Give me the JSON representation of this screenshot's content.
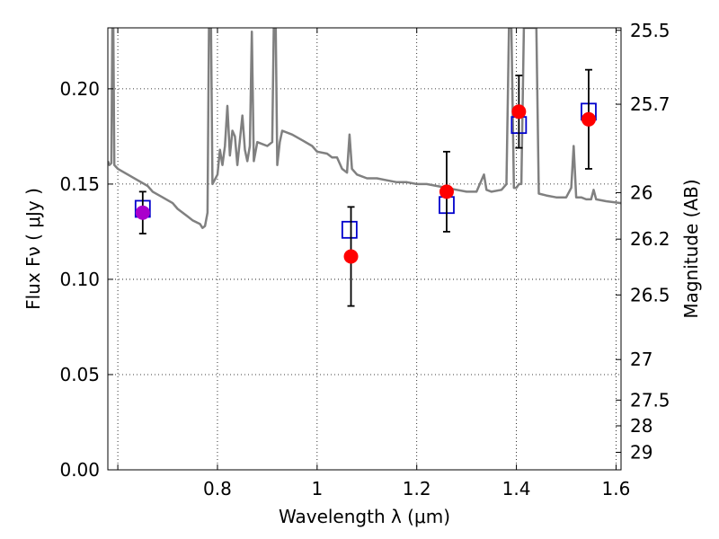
{
  "chart_data": {
    "type": "scatter",
    "title": "",
    "xlabel": "Wavelength  λ (μm)",
    "ylabel": "Flux  Fν  ( μJy )",
    "y2label": "Magnitude (AB)",
    "xlim": [
      0.58,
      1.61
    ],
    "ylim": [
      0.0,
      0.232
    ],
    "grid": true,
    "legend": "none",
    "x_ticks": [
      {
        "value": 0.6,
        "label": ""
      },
      {
        "value": 0.8,
        "label": "0.8"
      },
      {
        "value": 1.0,
        "label": "1"
      },
      {
        "value": 1.2,
        "label": "1.2"
      },
      {
        "value": 1.4,
        "label": "1.4"
      },
      {
        "value": 1.6,
        "label": "1.6"
      }
    ],
    "y_ticks": [
      {
        "value": 0.0,
        "label": "0.00"
      },
      {
        "value": 0.05,
        "label": "0.05"
      },
      {
        "value": 0.1,
        "label": "0.10"
      },
      {
        "value": 0.15,
        "label": "0.15"
      },
      {
        "value": 0.2,
        "label": "0.20"
      }
    ],
    "y2_ticks": [
      {
        "label": "25.5",
        "flux": 0.2307
      },
      {
        "label": "25.7",
        "flux": 0.1919
      },
      {
        "label": "26",
        "flux": 0.1455
      },
      {
        "label": "26.2",
        "flux": 0.1211
      },
      {
        "label": "26.5",
        "flux": 0.0918
      },
      {
        "label": "27",
        "flux": 0.0579
      },
      {
        "label": "27.5",
        "flux": 0.0366
      },
      {
        "label": "28",
        "flux": 0.0231
      },
      {
        "label": "29",
        "flux": 0.0092
      }
    ],
    "series": [
      {
        "kind": "line",
        "color": "#808080",
        "points": [
          [
            0.58,
            0.162
          ],
          [
            0.583,
            0.16
          ],
          [
            0.587,
            0.161
          ],
          [
            0.589,
            0.232
          ],
          [
            0.591,
            0.232
          ],
          [
            0.593,
            0.16
          ],
          [
            0.6,
            0.158
          ],
          [
            0.62,
            0.155
          ],
          [
            0.64,
            0.152
          ],
          [
            0.66,
            0.149
          ],
          [
            0.67,
            0.146
          ],
          [
            0.69,
            0.143
          ],
          [
            0.71,
            0.14
          ],
          [
            0.72,
            0.137
          ],
          [
            0.74,
            0.133
          ],
          [
            0.75,
            0.131
          ],
          [
            0.765,
            0.129
          ],
          [
            0.77,
            0.127
          ],
          [
            0.775,
            0.128
          ],
          [
            0.78,
            0.135
          ],
          [
            0.783,
            0.232
          ],
          [
            0.787,
            0.232
          ],
          [
            0.79,
            0.15
          ],
          [
            0.8,
            0.155
          ],
          [
            0.805,
            0.168
          ],
          [
            0.81,
            0.16
          ],
          [
            0.815,
            0.17
          ],
          [
            0.82,
            0.191
          ],
          [
            0.825,
            0.165
          ],
          [
            0.83,
            0.178
          ],
          [
            0.835,
            0.175
          ],
          [
            0.84,
            0.16
          ],
          [
            0.85,
            0.186
          ],
          [
            0.855,
            0.168
          ],
          [
            0.86,
            0.162
          ],
          [
            0.865,
            0.17
          ],
          [
            0.869,
            0.23
          ],
          [
            0.873,
            0.162
          ],
          [
            0.88,
            0.172
          ],
          [
            0.9,
            0.17
          ],
          [
            0.91,
            0.172
          ],
          [
            0.913,
            0.232
          ],
          [
            0.917,
            0.232
          ],
          [
            0.92,
            0.16
          ],
          [
            0.925,
            0.172
          ],
          [
            0.93,
            0.178
          ],
          [
            0.95,
            0.176
          ],
          [
            0.97,
            0.173
          ],
          [
            0.99,
            0.17
          ],
          [
            1.0,
            0.167
          ],
          [
            1.02,
            0.166
          ],
          [
            1.03,
            0.164
          ],
          [
            1.04,
            0.164
          ],
          [
            1.05,
            0.158
          ],
          [
            1.06,
            0.156
          ],
          [
            1.065,
            0.176
          ],
          [
            1.07,
            0.158
          ],
          [
            1.08,
            0.155
          ],
          [
            1.1,
            0.153
          ],
          [
            1.12,
            0.153
          ],
          [
            1.14,
            0.152
          ],
          [
            1.16,
            0.151
          ],
          [
            1.18,
            0.151
          ],
          [
            1.2,
            0.15
          ],
          [
            1.22,
            0.15
          ],
          [
            1.24,
            0.149
          ],
          [
            1.26,
            0.148
          ],
          [
            1.28,
            0.147
          ],
          [
            1.3,
            0.146
          ],
          [
            1.32,
            0.146
          ],
          [
            1.335,
            0.155
          ],
          [
            1.34,
            0.147
          ],
          [
            1.35,
            0.146
          ],
          [
            1.37,
            0.147
          ],
          [
            1.38,
            0.15
          ],
          [
            1.385,
            0.232
          ],
          [
            1.39,
            0.232
          ],
          [
            1.395,
            0.148
          ],
          [
            1.4,
            0.148
          ],
          [
            1.405,
            0.15
          ],
          [
            1.41,
            0.15
          ],
          [
            1.415,
            0.232
          ],
          [
            1.44,
            0.232
          ],
          [
            1.445,
            0.145
          ],
          [
            1.46,
            0.144
          ],
          [
            1.48,
            0.143
          ],
          [
            1.5,
            0.143
          ],
          [
            1.51,
            0.148
          ],
          [
            1.515,
            0.17
          ],
          [
            1.52,
            0.143
          ],
          [
            1.53,
            0.143
          ],
          [
            1.54,
            0.142
          ],
          [
            1.55,
            0.142
          ],
          [
            1.555,
            0.147
          ],
          [
            1.56,
            0.142
          ],
          [
            1.58,
            0.141
          ],
          [
            1.61,
            0.14
          ]
        ]
      },
      {
        "kind": "squares",
        "color": "#0000cc",
        "points": [
          {
            "x": 0.65,
            "y": 0.137
          },
          {
            "x": 1.065,
            "y": 0.126
          },
          {
            "x": 1.26,
            "y": 0.139
          },
          {
            "x": 1.405,
            "y": 0.181
          },
          {
            "x": 1.545,
            "y": 0.188
          }
        ]
      },
      {
        "kind": "circles",
        "color": "#ff0000",
        "points": [
          {
            "x": 0.65,
            "y": 0.135,
            "yerr": 0.011,
            "color": "#aa00cc"
          },
          {
            "x": 1.068,
            "y": 0.112,
            "yerr": 0.026
          },
          {
            "x": 1.26,
            "y": 0.146,
            "yerr": 0.021
          },
          {
            "x": 1.405,
            "y": 0.188,
            "yerr": 0.019
          },
          {
            "x": 1.545,
            "y": 0.184,
            "yerr": 0.026
          }
        ]
      }
    ]
  }
}
